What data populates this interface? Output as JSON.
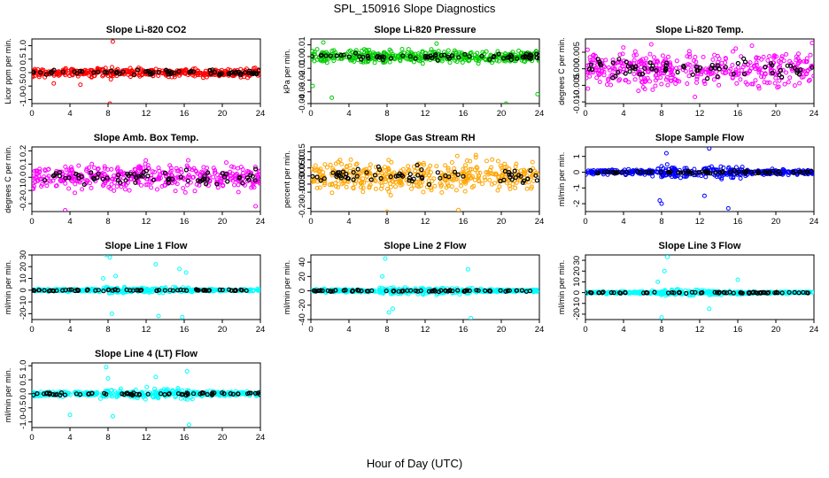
{
  "figure": {
    "title": "SPL_150916  Slope Diagnostics",
    "xlabel": "Hour of Day (UTC)"
  },
  "colors": {
    "black_points": "#000000",
    "red": "#ff0000",
    "green": "#00cc00",
    "magenta": "#ff00ff",
    "orange": "#ffa500",
    "blue": "#0000ff",
    "cyan": "#00ffff"
  },
  "chart_data": [
    {
      "type": "scatter",
      "title": "Slope Li-820 CO2",
      "ylabel": "Licor ppm per min.",
      "xlim": [
        0,
        24
      ],
      "xticks": [
        0,
        4,
        8,
        12,
        16,
        20,
        24
      ],
      "ylim": [
        -1.15,
        1.25
      ],
      "yticks": [
        -1.0,
        -0.5,
        0.0,
        0.5,
        1.0
      ],
      "ytick_labels": [
        "-1.0",
        "-0.5",
        "0.0",
        "0.5",
        "1.0"
      ],
      "color": "red",
      "spread": 0.15,
      "spikes": [
        [
          8.2,
          -1.15
        ],
        [
          8.5,
          1.15
        ],
        [
          2.3,
          -0.4
        ],
        [
          5.1,
          -0.45
        ],
        [
          8.3,
          -0.25
        ]
      ]
    },
    {
      "type": "scatter",
      "title": "Slope Li-820 Pressure",
      "ylabel": "kPa per min.",
      "xlim": [
        0,
        24
      ],
      "xticks": [
        0,
        4,
        8,
        12,
        16,
        20,
        24
      ],
      "ylim": [
        -0.04,
        0.015
      ],
      "yticks": [
        -0.04,
        -0.03,
        -0.02,
        -0.01,
        0.0,
        0.01
      ],
      "ytick_labels": [
        "-0.04",
        "-0.03",
        "-0.02",
        "-0.01",
        "0.00",
        "0.01"
      ],
      "color": "green",
      "spread": 0.005,
      "spikes": [
        [
          0.2,
          -0.025
        ],
        [
          2.2,
          -0.035
        ],
        [
          1.3,
          0.012
        ],
        [
          20.5,
          -0.04
        ],
        [
          23.8,
          -0.032
        ],
        [
          13.2,
          0.011
        ]
      ]
    },
    {
      "type": "scatter",
      "title": "Slope Li-820 Temp.",
      "ylabel": "degrees C per min.",
      "xlim": [
        0,
        24
      ],
      "xticks": [
        0,
        4,
        8,
        12,
        16,
        20,
        24
      ],
      "ylim": [
        -0.0105,
        0.009
      ],
      "yticks": [
        -0.01,
        -0.005,
        0.0,
        0.005
      ],
      "ytick_labels": [
        "-0.010",
        "-0.005",
        "0.000",
        "0.005"
      ],
      "color": "magenta",
      "spread": 0.005,
      "spikes": [
        [
          23.8,
          0.0078
        ],
        [
          11.5,
          -0.0085
        ]
      ]
    },
    {
      "type": "scatter",
      "title": "Slope Amb. Box Temp.",
      "ylabel": "degrees C per min.",
      "xlim": [
        0,
        24
      ],
      "xticks": [
        0,
        4,
        8,
        12,
        16,
        20,
        24
      ],
      "ylim": [
        -0.26,
        0.23
      ],
      "yticks": [
        -0.2,
        -0.1,
        0.0,
        0.1,
        0.2
      ],
      "ytick_labels": [
        "-0.2",
        "-0.1",
        "0.0",
        "0.1",
        "0.2"
      ],
      "color": "magenta",
      "spread": 0.09,
      "spikes": [
        [
          3.5,
          -0.25
        ],
        [
          23.5,
          -0.22
        ]
      ]
    },
    {
      "type": "scatter",
      "title": "Slope Gas Stream RH",
      "ylabel": "percent per min.",
      "xlim": [
        0,
        24
      ],
      "xticks": [
        0,
        4,
        8,
        12,
        16,
        20,
        24
      ],
      "ylim": [
        -0.22,
        0.18
      ],
      "yticks": [
        -0.2,
        -0.1,
        -0.05,
        0.0,
        0.05,
        0.1,
        0.15
      ],
      "ytick_labels": [
        "-0.20",
        "-0.10",
        "-0.05",
        "0.00",
        "0.05",
        "0.10",
        "0.15"
      ],
      "color": "orange",
      "spread": 0.09,
      "spikes": [
        [
          8.0,
          -0.22
        ],
        [
          15.5,
          -0.21
        ]
      ]
    },
    {
      "type": "scatter",
      "title": "Slope Sample Flow",
      "ylabel": "ml/min per min.",
      "xlim": [
        0,
        24
      ],
      "xticks": [
        0,
        4,
        8,
        12,
        16,
        20,
        24
      ],
      "ylim": [
        -2.5,
        1.6
      ],
      "yticks": [
        -2,
        -1,
        0,
        1
      ],
      "ytick_labels": [
        "-2",
        "-1",
        "0",
        "1"
      ],
      "color": "blue",
      "spread": 0.15,
      "spikes": [
        [
          8.0,
          -2.0
        ],
        [
          7.8,
          -1.8
        ],
        [
          8.5,
          1.2
        ],
        [
          15.0,
          -2.3
        ],
        [
          13.0,
          1.5
        ],
        [
          12.5,
          -1.5
        ]
      ]
    },
    {
      "type": "scatter",
      "title": "Slope Line 1 Flow",
      "ylabel": "ml/min per min.",
      "xlim": [
        0,
        24
      ],
      "xticks": [
        0,
        4,
        8,
        12,
        16,
        20,
        24
      ],
      "ylim": [
        -25,
        30
      ],
      "yticks": [
        -20,
        -10,
        0,
        10,
        20,
        30
      ],
      "ytick_labels": [
        "-20",
        "-10",
        "0",
        "10",
        "20",
        "30"
      ],
      "color": "cyan",
      "spread": 1.0,
      "spikes": [
        [
          7.8,
          30
        ],
        [
          8.2,
          28
        ],
        [
          8.4,
          -20
        ],
        [
          13.0,
          22
        ],
        [
          13.3,
          -22
        ],
        [
          15.8,
          -23
        ],
        [
          15.5,
          18
        ],
        [
          16.2,
          15
        ],
        [
          8.8,
          12
        ],
        [
          7.5,
          10
        ]
      ]
    },
    {
      "type": "scatter",
      "title": "Slope Line 2 Flow",
      "ylabel": "ml/min per min.",
      "xlim": [
        0,
        24
      ],
      "xticks": [
        0,
        4,
        8,
        12,
        16,
        20,
        24
      ],
      "ylim": [
        -40,
        50
      ],
      "yticks": [
        -40,
        -20,
        0,
        20,
        40
      ],
      "ytick_labels": [
        "-40",
        "-20",
        "0",
        "20",
        "40"
      ],
      "color": "cyan",
      "spread": 2.0,
      "spikes": [
        [
          7.8,
          45
        ],
        [
          8.2,
          -30
        ],
        [
          16.5,
          30
        ],
        [
          16.8,
          -38
        ],
        [
          7.5,
          20
        ],
        [
          8.6,
          -25
        ]
      ]
    },
    {
      "type": "scatter",
      "title": "Slope Line 3 Flow",
      "ylabel": "ml/min per min.",
      "xlim": [
        0,
        24
      ],
      "xticks": [
        0,
        4,
        8,
        12,
        16,
        20,
        24
      ],
      "ylim": [
        -25,
        35
      ],
      "yticks": [
        -20,
        -10,
        0,
        10,
        20,
        30
      ],
      "ytick_labels": [
        "-20",
        "-10",
        "0",
        "10",
        "20",
        "30"
      ],
      "color": "cyan",
      "spread": 1.0,
      "spikes": [
        [
          8.6,
          33
        ],
        [
          8.0,
          -23
        ],
        [
          13.0,
          -15
        ],
        [
          16.0,
          12
        ],
        [
          8.3,
          20
        ],
        [
          7.6,
          10
        ]
      ]
    },
    {
      "type": "scatter",
      "title": "Slope Line 4 (LT) Flow",
      "ylabel": "ml/min per min.",
      "xlim": [
        0,
        24
      ],
      "xticks": [
        0,
        4,
        8,
        12,
        16,
        20,
        24
      ],
      "ylim": [
        -1.2,
        1.1
      ],
      "yticks": [
        -1.0,
        -0.5,
        0.0,
        0.5,
        1.0
      ],
      "ytick_labels": [
        "-1.0",
        "-0.5",
        "0.0",
        "0.5",
        "1.0"
      ],
      "color": "cyan",
      "spread": 0.08,
      "spikes": [
        [
          7.8,
          0.95
        ],
        [
          8.5,
          -0.8
        ],
        [
          16.3,
          0.8
        ],
        [
          16.5,
          -1.1
        ],
        [
          4.0,
          -0.75
        ],
        [
          13.0,
          0.6
        ],
        [
          8.0,
          0.55
        ]
      ]
    }
  ]
}
